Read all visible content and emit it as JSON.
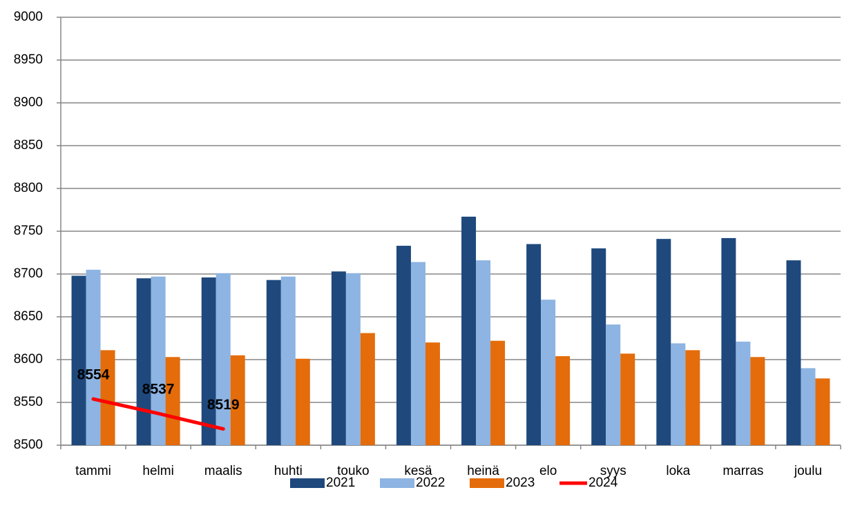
{
  "chart_data": {
    "type": "bar",
    "categories": [
      "tammi",
      "helmi",
      "maalis",
      "huhti",
      "touko",
      "kesä",
      "heinä",
      "elo",
      "syys",
      "loka",
      "marras",
      "joulu"
    ],
    "series": [
      {
        "name": "2021",
        "color": "#1f497d",
        "values": [
          8698,
          8695,
          8696,
          8693,
          8703,
          8733,
          8767,
          8735,
          8730,
          8741,
          8742,
          8716
        ]
      },
      {
        "name": "2022",
        "color": "#8db4e2",
        "values": [
          8705,
          8697,
          8701,
          8697,
          8701,
          8714,
          8716,
          8670,
          8641,
          8619,
          8621,
          8590
        ]
      },
      {
        "name": "2023",
        "color": "#e46c0a",
        "values": [
          8611,
          8603,
          8605,
          8601,
          8631,
          8620,
          8622,
          8604,
          8607,
          8611,
          8603,
          8578
        ]
      },
      {
        "name": "2024",
        "color": "#ff0000",
        "type": "line",
        "data_labels": true,
        "values": [
          8554,
          8537,
          8519,
          null,
          null,
          null,
          null,
          null,
          null,
          null,
          null,
          null
        ]
      }
    ],
    "ylim": [
      8500,
      9000
    ],
    "yticks": [
      8500,
      8550,
      8600,
      8650,
      8700,
      8750,
      8800,
      8850,
      8900,
      8950,
      9000
    ],
    "grid": true,
    "legend": "bottom"
  }
}
